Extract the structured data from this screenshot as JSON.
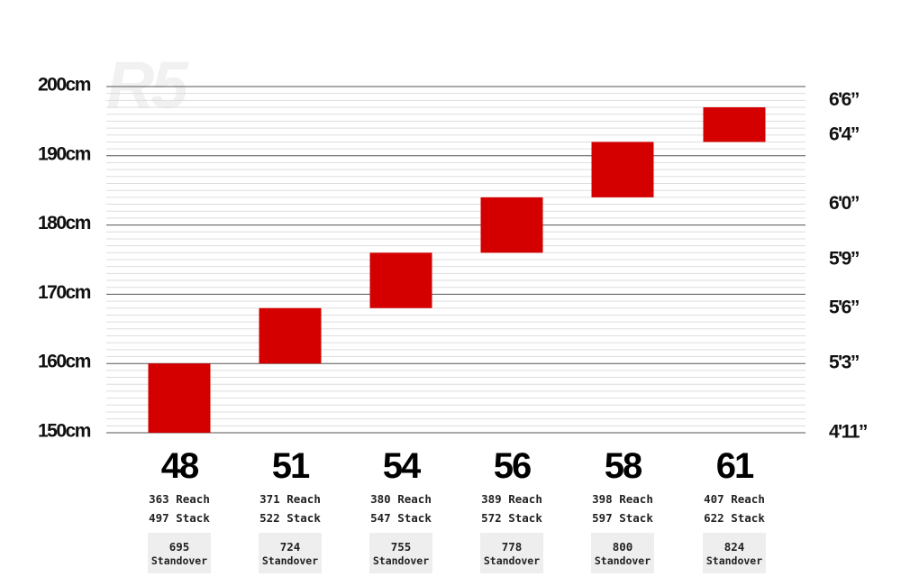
{
  "watermark": "R5",
  "colors": {
    "bar": "#d40000",
    "major_grid": "#555555",
    "minor_grid": "#dddddd",
    "standover_box": "#eeeeee"
  },
  "chart_data": {
    "type": "bar",
    "categories": [
      "48",
      "51",
      "54",
      "56",
      "58",
      "61"
    ],
    "series": [
      {
        "values": [
          [
            150,
            160
          ],
          [
            160,
            168
          ],
          [
            168,
            176
          ],
          [
            176,
            184
          ],
          [
            184,
            192
          ],
          [
            192,
            197
          ]
        ]
      }
    ],
    "y_left_ticks": [
      {
        "value": 200,
        "label": "200cm"
      },
      {
        "value": 190,
        "label": "190cm"
      },
      {
        "value": 180,
        "label": "180cm"
      },
      {
        "value": 170,
        "label": "170cm"
      },
      {
        "value": 160,
        "label": "160cm"
      },
      {
        "value": 150,
        "label": "150cm"
      }
    ],
    "y_right_ticks": [
      {
        "value": 198,
        "label": "6'6”"
      },
      {
        "value": 193,
        "label": "6'4”"
      },
      {
        "value": 183,
        "label": "6'0”"
      },
      {
        "value": 175,
        "label": "5'9”"
      },
      {
        "value": 168,
        "label": "5'6”"
      },
      {
        "value": 160,
        "label": "5'3”"
      },
      {
        "value": 150,
        "label": "4'11”"
      }
    ],
    "ylim": [
      150,
      200
    ],
    "grid": true,
    "reach": [
      "363 Reach",
      "371 Reach",
      "380 Reach",
      "389 Reach",
      "398 Reach",
      "407 Reach"
    ],
    "stack": [
      "497 Stack",
      "522 Stack",
      "547 Stack",
      "572 Stack",
      "597 Stack",
      "622 Stack"
    ],
    "standover": {
      "values": [
        "695",
        "724",
        "755",
        "778",
        "800",
        "824"
      ],
      "label": "Standover"
    }
  }
}
